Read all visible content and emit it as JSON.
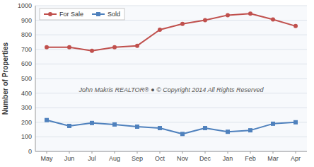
{
  "chart_data": {
    "type": "line",
    "ylabel": "Number of Properties",
    "categories": [
      "May",
      "Jun",
      "Jul",
      "Aug",
      "Sep",
      "Oct",
      "Nov",
      "Dec",
      "Jan",
      "Feb",
      "Mar",
      "Apr"
    ],
    "series": [
      {
        "name": "For Sale",
        "color": "#c0504d",
        "marker": "circle",
        "values": [
          715,
          715,
          690,
          715,
          725,
          835,
          875,
          900,
          935,
          945,
          905,
          860
        ]
      },
      {
        "name": "Sold",
        "color": "#4f81bd",
        "marker": "square",
        "values": [
          215,
          175,
          195,
          185,
          170,
          160,
          120,
          160,
          135,
          145,
          190,
          200
        ]
      }
    ],
    "ylim": [
      0,
      1000
    ],
    "yticks": [
      0,
      100,
      200,
      300,
      400,
      500,
      600,
      700,
      800,
      900,
      1000
    ],
    "grid": true,
    "legend": "upper left",
    "annotations": [
      "John Makris REALTOR®  ●  © Copyright 2014 All Rights Reserved"
    ]
  }
}
